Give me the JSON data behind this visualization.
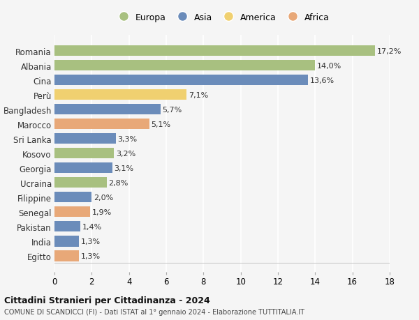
{
  "categories": [
    "Romania",
    "Albania",
    "Cina",
    "Perù",
    "Bangladesh",
    "Marocco",
    "Sri Lanka",
    "Kosovo",
    "Georgia",
    "Ucraina",
    "Filippine",
    "Senegal",
    "Pakistan",
    "India",
    "Egitto"
  ],
  "values": [
    17.2,
    14.0,
    13.6,
    7.1,
    5.7,
    5.1,
    3.3,
    3.2,
    3.1,
    2.8,
    2.0,
    1.9,
    1.4,
    1.3,
    1.3
  ],
  "labels": [
    "17,2%",
    "14,0%",
    "13,6%",
    "7,1%",
    "5,7%",
    "5,1%",
    "3,3%",
    "3,2%",
    "3,1%",
    "2,8%",
    "2,0%",
    "1,9%",
    "1,4%",
    "1,3%",
    "1,3%"
  ],
  "continents": [
    "Europa",
    "Europa",
    "Asia",
    "America",
    "Asia",
    "Africa",
    "Asia",
    "Europa",
    "Asia",
    "Europa",
    "Asia",
    "Africa",
    "Asia",
    "Asia",
    "Africa"
  ],
  "colors": {
    "Europa": "#a8c080",
    "Asia": "#6b8cba",
    "America": "#f0d070",
    "Africa": "#e8a878"
  },
  "legend_order": [
    "Europa",
    "Asia",
    "America",
    "Africa"
  ],
  "title1": "Cittadini Stranieri per Cittadinanza - 2024",
  "title2": "COMUNE DI SCANDICCI (FI) - Dati ISTAT al 1° gennaio 2024 - Elaborazione TUTTITALIA.IT",
  "xlim": [
    0,
    18
  ],
  "xticks": [
    0,
    2,
    4,
    6,
    8,
    10,
    12,
    14,
    16,
    18
  ],
  "background_color": "#f5f5f5",
  "grid_color": "#ffffff",
  "bar_height": 0.72
}
